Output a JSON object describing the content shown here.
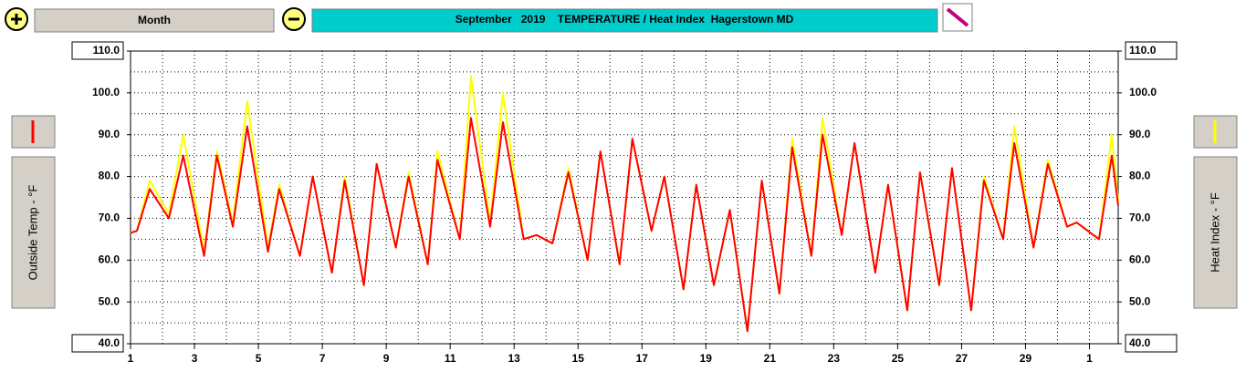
{
  "toolbar": {
    "range_button": "Month"
  },
  "chart_data": {
    "type": "line",
    "title": "September   2019    TEMPERATURE / Heat Index  Hagerstown MD",
    "x": [
      1.0,
      1.2,
      1.6,
      2.2,
      2.65,
      3.3,
      3.7,
      4.2,
      4.65,
      5.3,
      5.65,
      6.3,
      6.7,
      7.3,
      7.7,
      8.3,
      8.7,
      9.3,
      9.7,
      10.3,
      10.6,
      11.3,
      11.65,
      12.25,
      12.65,
      13.3,
      13.7,
      14.2,
      14.7,
      15.3,
      15.7,
      16.3,
      16.7,
      17.3,
      17.7,
      18.3,
      18.7,
      19.25,
      19.75,
      20.3,
      20.75,
      21.3,
      21.7,
      22.3,
      22.65,
      23.25,
      23.65,
      24.3,
      24.7,
      25.3,
      25.7,
      26.3,
      26.7,
      27.3,
      27.7,
      28.3,
      28.65,
      29.25,
      29.7,
      30.3,
      30.6,
      31.3,
      31.7,
      31.9
    ],
    "series": [
      {
        "name": "Heat Index - °F",
        "color": "#ffff00",
        "axis": "y2",
        "values": [
          66.5,
          67,
          79,
          71,
          90,
          62,
          86,
          69,
          98,
          63,
          78,
          61,
          80,
          57,
          80,
          54,
          83,
          63,
          81,
          59,
          86,
          65,
          104,
          69,
          100,
          65,
          66,
          64,
          82,
          60,
          86,
          59,
          89,
          67,
          80,
          53,
          78,
          54,
          72,
          43,
          79,
          52,
          89,
          61,
          94,
          66,
          88,
          57,
          78,
          48,
          81,
          54,
          82,
          48,
          80,
          65,
          92,
          63,
          84,
          68,
          69,
          65,
          90,
          74
        ]
      },
      {
        "name": "Outside Temp - °F",
        "color": "#ff0000",
        "values": [
          66.5,
          67,
          77,
          70,
          85,
          61,
          85,
          68,
          92,
          62,
          77,
          61,
          80,
          57,
          79,
          54,
          83,
          63,
          80,
          59,
          84,
          65,
          94,
          68,
          93,
          65,
          66,
          64,
          81,
          60,
          86,
          59,
          89,
          67,
          80,
          53,
          78,
          54,
          72,
          43,
          79,
          52,
          87,
          61,
          90,
          66,
          88,
          57,
          78,
          48,
          81,
          54,
          82,
          48,
          79,
          65,
          88,
          63,
          83,
          68,
          69,
          65,
          85,
          73
        ]
      }
    ],
    "xlim": [
      1,
      31.9
    ],
    "xticks": [
      1,
      3,
      5,
      7,
      9,
      11,
      13,
      15,
      17,
      19,
      21,
      23,
      25,
      27,
      29,
      {
        "value": 31,
        "label": "1"
      }
    ],
    "xgrid": [
      1,
      2,
      3,
      4,
      5,
      6,
      7,
      8,
      9,
      10,
      11,
      12,
      13,
      14,
      15,
      16,
      17,
      18,
      19,
      20,
      21,
      22,
      23,
      24,
      25,
      26,
      27,
      28,
      29,
      30,
      31
    ],
    "ylim": [
      40,
      110
    ],
    "yticks": [
      {
        "value": 40,
        "label": "40.0"
      },
      {
        "value": 50,
        "label": "50.0"
      },
      {
        "value": 60,
        "label": "60.0"
      },
      {
        "value": 70,
        "label": "70.0"
      },
      {
        "value": 80,
        "label": "80.0"
      },
      {
        "value": 90,
        "label": "90.0"
      },
      {
        "value": 100,
        "label": "100.0"
      },
      {
        "value": 110,
        "label": "110.0"
      }
    ],
    "y2lim": [
      40,
      110
    ],
    "y2ticks": [
      {
        "value": 40,
        "label": "40.0"
      },
      {
        "value": 50,
        "label": "50.0"
      },
      {
        "value": 60,
        "label": "60.0"
      },
      {
        "value": 70,
        "label": "70.0"
      },
      {
        "value": 80,
        "label": "80.0"
      },
      {
        "value": 90,
        "label": "90.0"
      },
      {
        "value": 100,
        "label": "100.0"
      },
      {
        "value": 110,
        "label": "110.0"
      }
    ],
    "ygrid": [
      45,
      50,
      55,
      60,
      65,
      70,
      75,
      80,
      85,
      90,
      95,
      100,
      105
    ],
    "grid": true
  }
}
